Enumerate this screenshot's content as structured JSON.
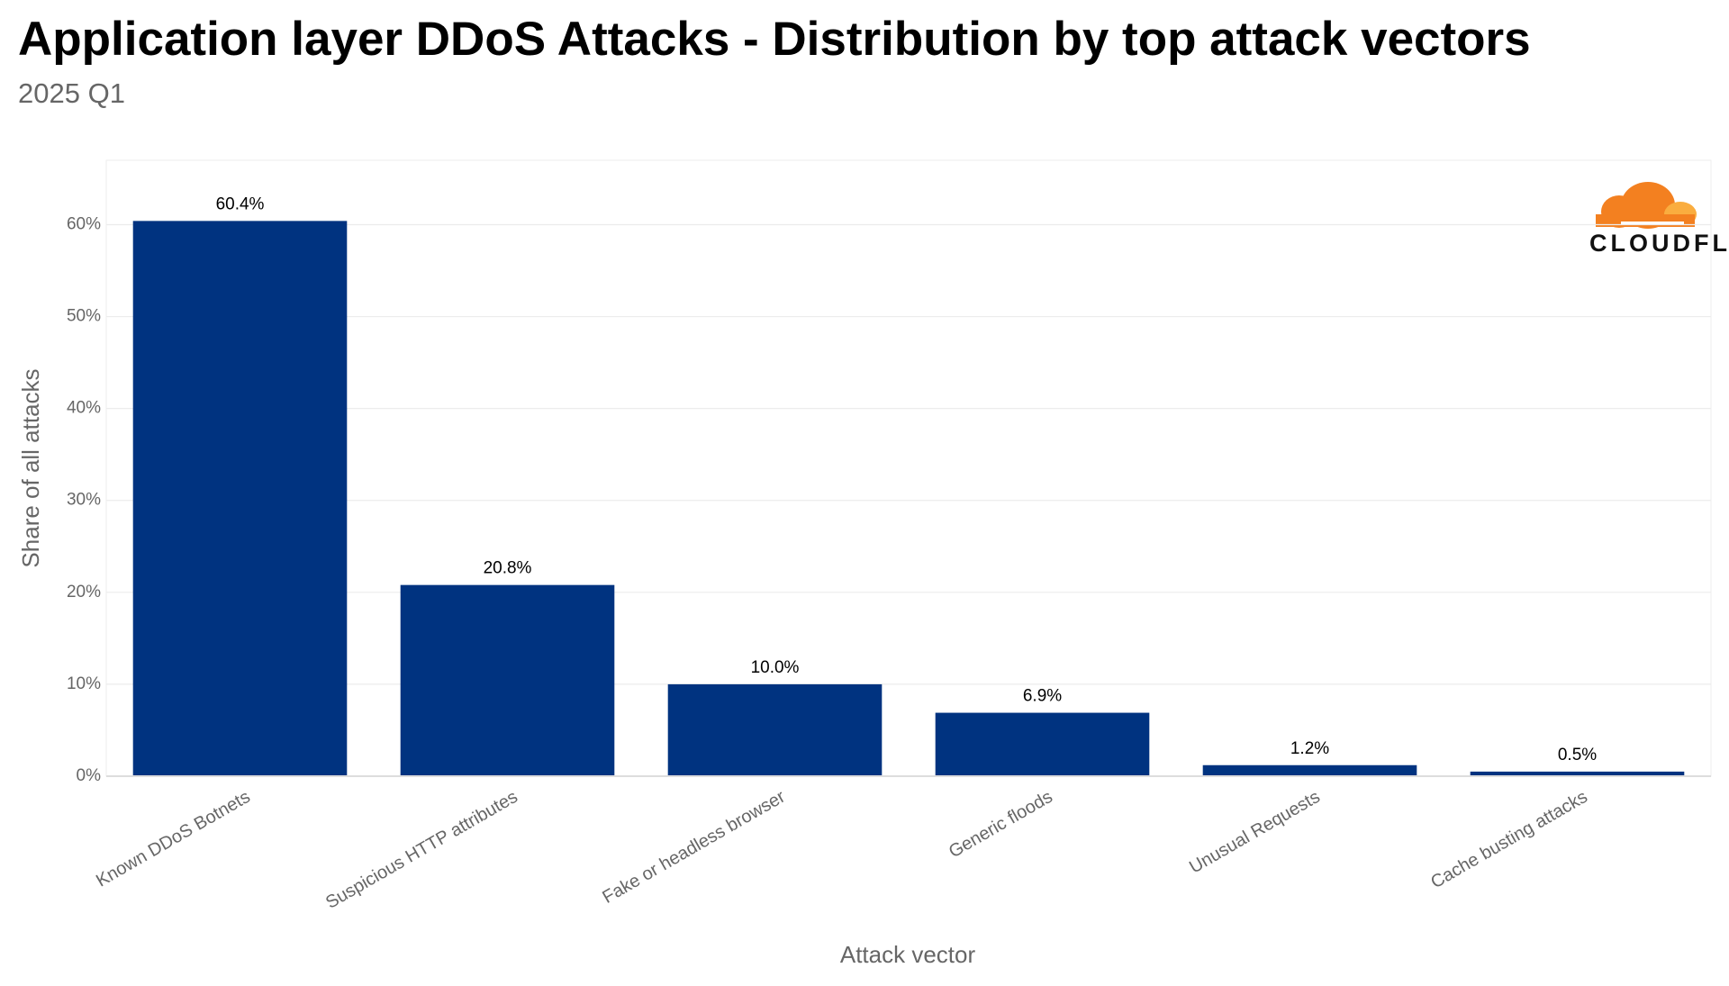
{
  "chart_data": {
    "type": "bar",
    "title": "Application layer DDoS Attacks - Distribution by top attack vectors",
    "subtitle": "2025 Q1",
    "logo": "CLOUDFLARE",
    "x_label": "Attack vector",
    "y_label": "Share of all attacks",
    "categories": [
      "Known DDoS Botnets",
      "Suspicious HTTP attributes",
      "Fake or headless browser",
      "Generic floods",
      "Unusual Requests",
      "Cache busting attacks"
    ],
    "values": [
      60.4,
      20.8,
      10.0,
      6.9,
      1.2,
      0.5
    ],
    "value_labels": [
      "60.4%",
      "20.8%",
      "10.0%",
      "6.9%",
      "1.2%",
      "0.5%"
    ],
    "color": "#003380",
    "ylim": [
      0,
      67
    ],
    "yticks": [
      {
        "value": 0,
        "label": "0%"
      },
      {
        "value": 10,
        "label": "10%"
      },
      {
        "value": 20,
        "label": "20%"
      },
      {
        "value": 30,
        "label": "30%"
      },
      {
        "value": 40,
        "label": "40%"
      },
      {
        "value": 50,
        "label": "50%"
      },
      {
        "value": 60,
        "label": "60%"
      }
    ],
    "grid": true
  }
}
